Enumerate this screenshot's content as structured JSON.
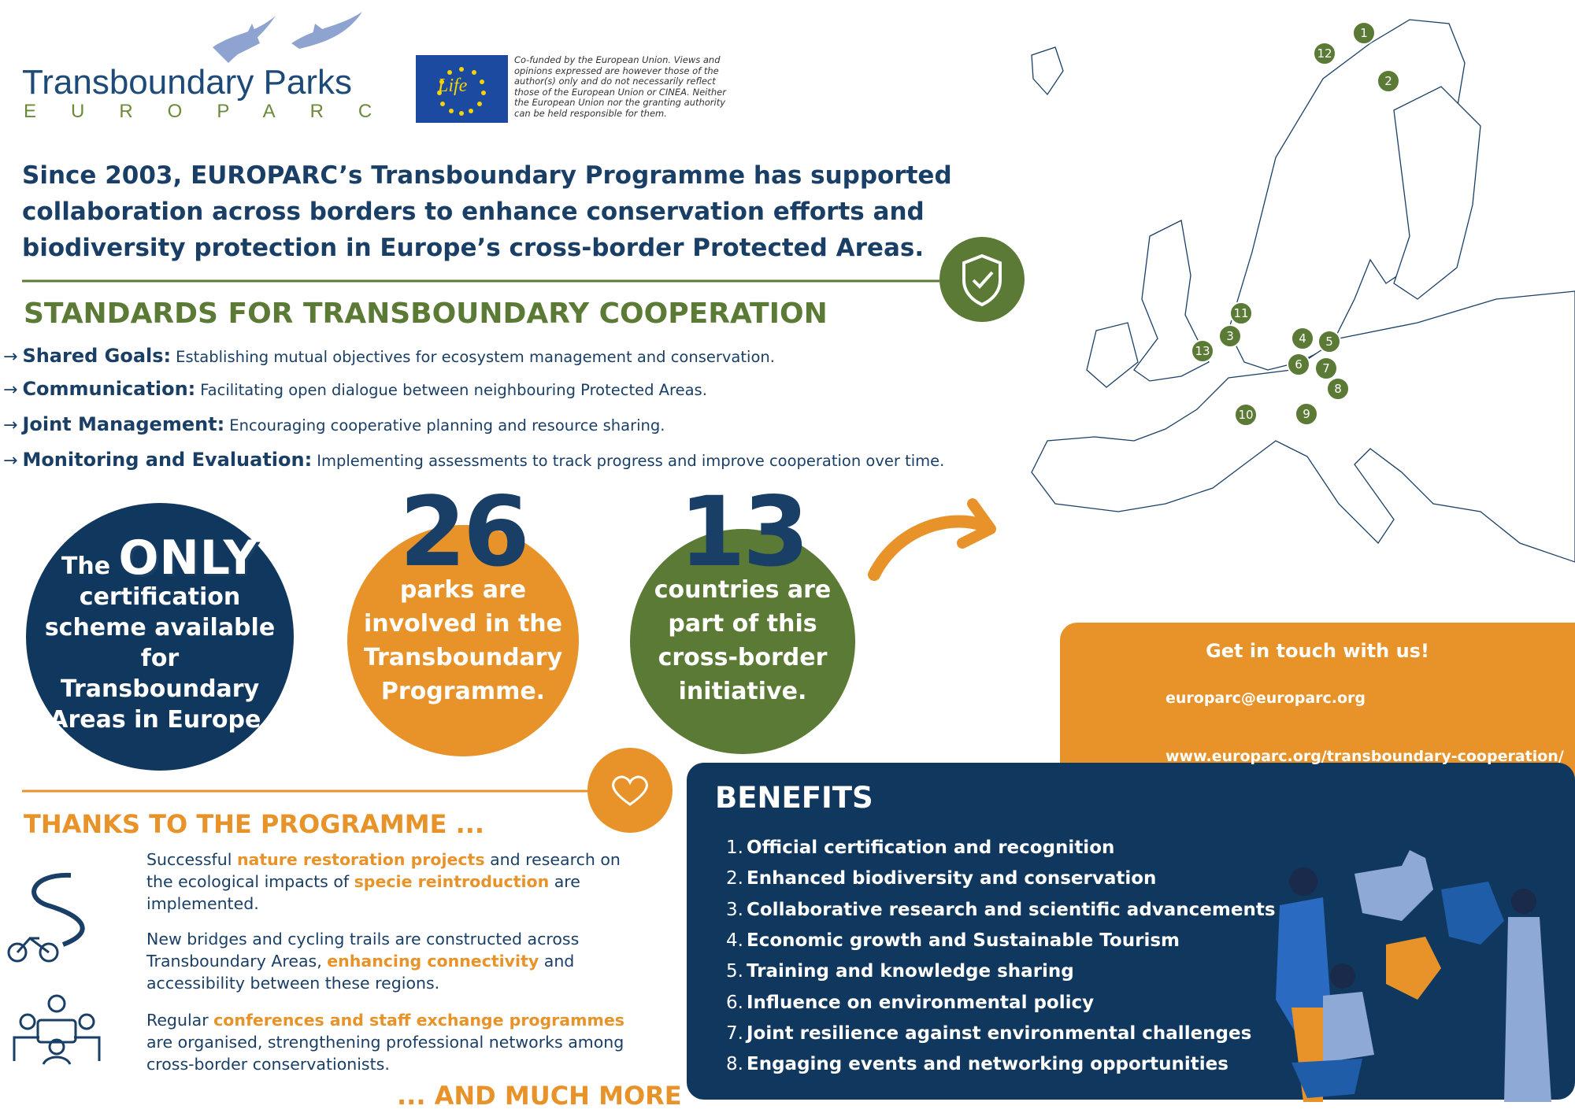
{
  "header": {
    "logo_title": "Transboundary Parks",
    "logo_subtitle": "EUROPARC",
    "life_logo": "Life",
    "eu_disclaimer": "Co-funded by the European Union. Views and opinions expressed are however those of the author(s) only and do not necessarily reflect those of the European Union or CINEA. Neither the European Union nor the granting authority can be held responsible for them."
  },
  "intro": "Since 2003, EUROPARC’s Transboundary Programme has supported collaboration across borders to enhance conservation efforts and biodiversity protection in Europe’s cross-border Protected Areas.",
  "standards": {
    "title": "STANDARDS FOR TRANSBOUNDARY COOPERATION",
    "items": [
      {
        "label": "Shared Goals:",
        "text": "Establishing mutual objectives for ecosystem management and conservation."
      },
      {
        "label": "Communication:",
        "text": "Facilitating open dialogue between neighbouring Protected Areas."
      },
      {
        "label": "Joint Management:",
        "text": "Encouraging cooperative planning and resource sharing."
      },
      {
        "label": "Monitoring and Evaluation:",
        "text": "Implementing assessments to track progress and improve cooperation over time."
      }
    ]
  },
  "stats": [
    {
      "prefix": "The",
      "headline": "ONLY",
      "text": "certification scheme available for Transboundary Areas in Europe."
    },
    {
      "headline": "26",
      "text": "parks are involved in the Transboundary Programme."
    },
    {
      "headline": "13",
      "text": "countries are part of this cross-border initiative."
    }
  ],
  "map_markers": [
    "1",
    "2",
    "12",
    "11",
    "3",
    "13",
    "4",
    "5",
    "6",
    "7",
    "8",
    "9",
    "10"
  ],
  "contact": {
    "title": "Get in touch with us!",
    "email": "europarc@europarc.org",
    "website": "www.europarc.org/transboundary-cooperation/"
  },
  "thanks": {
    "title": "THANKS TO THE PROGRAMME ...",
    "items": [
      {
        "parts": [
          "Successful ",
          "nature restoration projects",
          " and research on the ecological impacts of ",
          "specie reintroduction",
          " are implemented."
        ]
      },
      {
        "parts": [
          "New bridges and cycling trails are constructed across Transboundary Areas, ",
          "enhancing connectivity",
          " and accessibility between these regions."
        ]
      },
      {
        "parts": [
          "Regular ",
          "conferences and staff exchange programmes",
          " are organised, strengthening professional networks among cross-border conservationists."
        ]
      }
    ],
    "footer": "... AND MUCH MORE"
  },
  "benefits": {
    "title": "BENEFITS",
    "items": [
      {
        "number": "1.",
        "text": "Official certification and recognition"
      },
      {
        "number": "2.",
        "text": "Enhanced biodiversity and conservation"
      },
      {
        "number": "3.",
        "text": "Collaborative research and scientific advancements"
      },
      {
        "number": "4.",
        "text": "Economic growth and Sustainable Tourism"
      },
      {
        "number": "5.",
        "text": "Training and knowledge sharing"
      },
      {
        "number": "6.",
        "text": "Influence on environmental policy"
      },
      {
        "number": "7.",
        "text": "Joint resilience against environmental challenges"
      },
      {
        "number": "8.",
        "text": "Engaging events and networking opportunities"
      }
    ]
  }
}
